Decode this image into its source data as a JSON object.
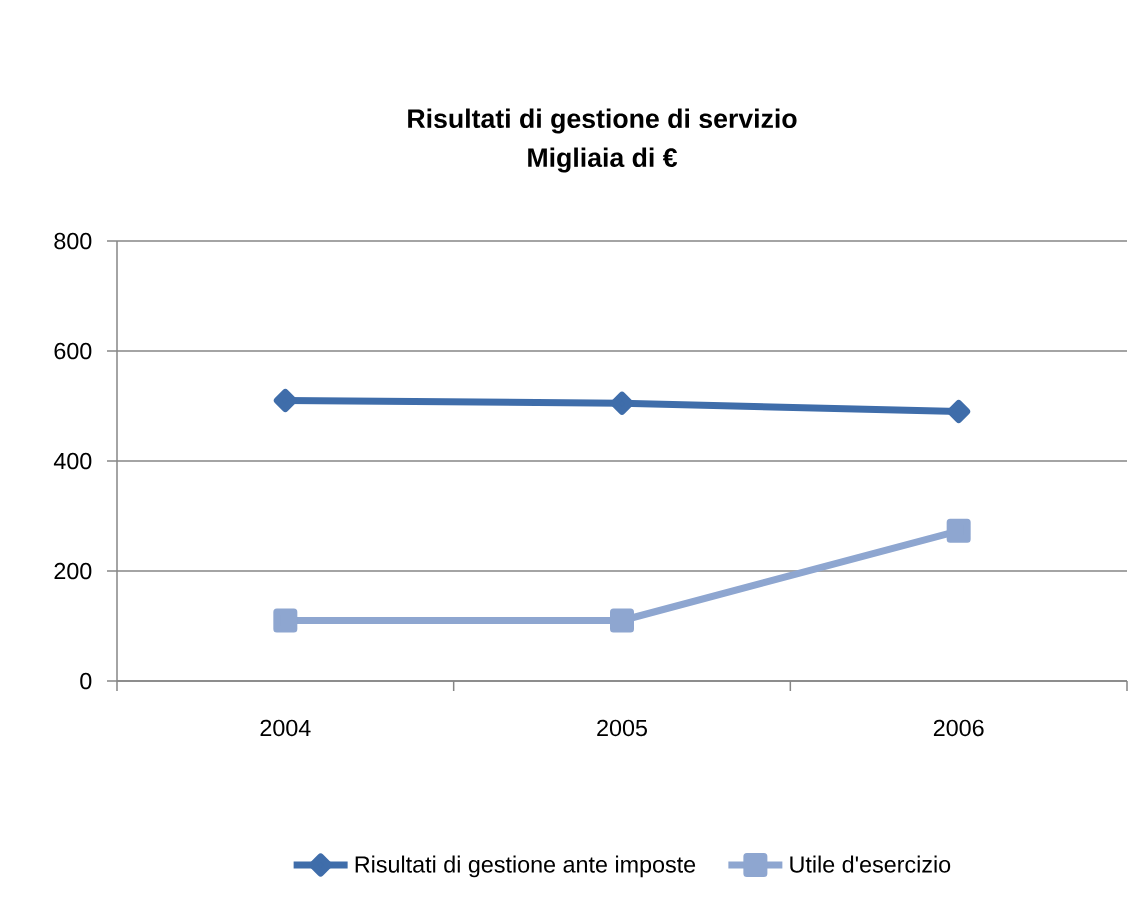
{
  "chart_data": {
    "type": "line",
    "title": "Risultati di gestione di servizio",
    "subtitle": "Migliaia di €",
    "categories": [
      "2004",
      "2005",
      "2006"
    ],
    "series": [
      {
        "name": "Risultati di gestione ante imposte",
        "color": "#3f6daa",
        "marker": "diamond",
        "values": [
          510,
          505,
          490
        ]
      },
      {
        "name": "Utile d'esercizio",
        "color": "#8ea6d0",
        "marker": "square",
        "values": [
          110,
          110,
          273
        ]
      }
    ],
    "ylim": [
      0,
      800
    ],
    "yticks": [
      0,
      200,
      400,
      600,
      800
    ],
    "grid": "y",
    "legend": "bottom",
    "line_style": "solid"
  }
}
